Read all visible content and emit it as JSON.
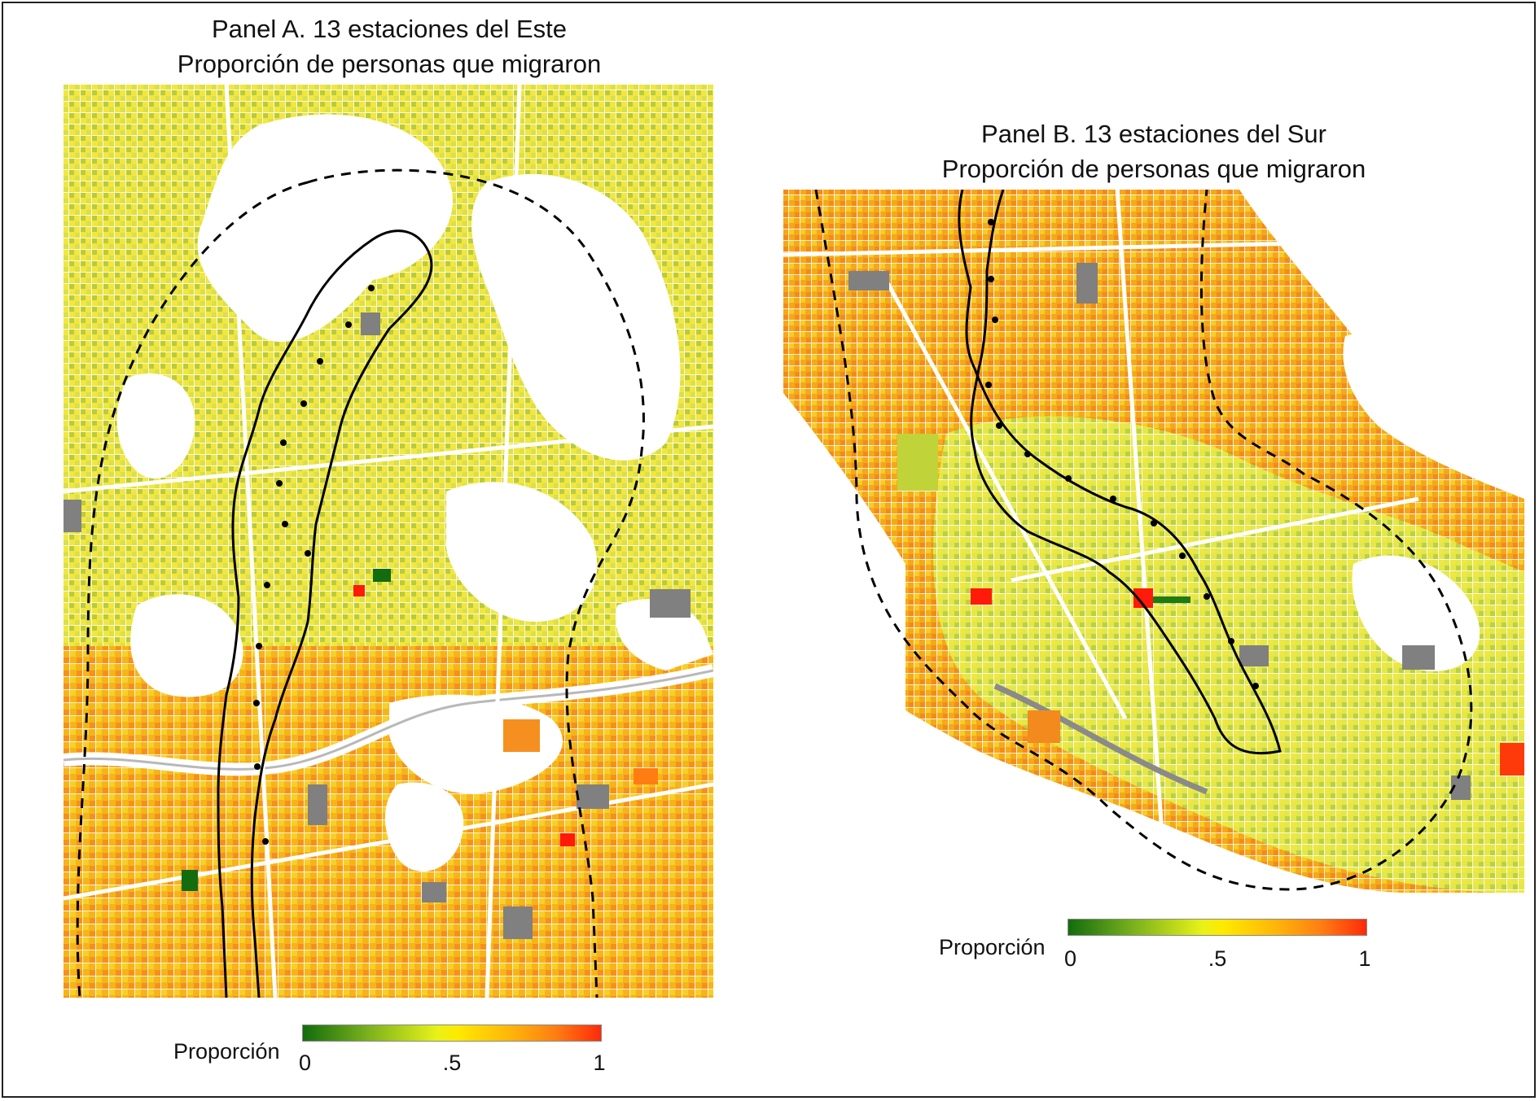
{
  "panels": [
    {
      "title_line1": "Panel A. 13 estaciones del Este",
      "title_line2": "Proporción de personas que migraron",
      "stations": 13
    },
    {
      "title_line1": "Panel B. 13 estaciones del Sur",
      "title_line2": "Proporción de personas que migraron",
      "stations": 13
    }
  ],
  "legend": {
    "title": "Proporción",
    "ticks": [
      "0",
      ".5",
      "1"
    ],
    "range": [
      0,
      1
    ],
    "colors": [
      "#136c0e",
      "#7bb21d",
      "#e8f218",
      "#ffe900",
      "#ffb40a",
      "#ff7d12",
      "#ff2a0a"
    ],
    "no_data_color": "#808080"
  }
}
